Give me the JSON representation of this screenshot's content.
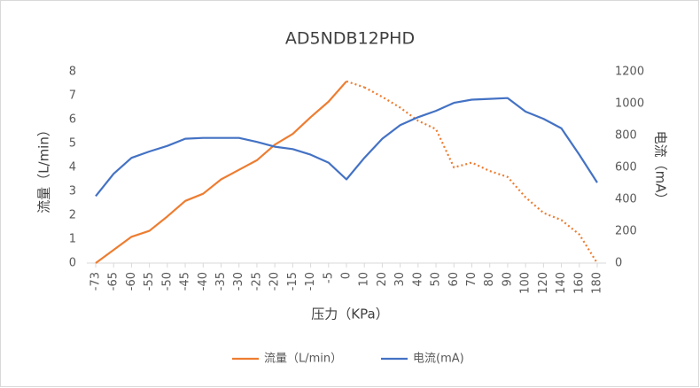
{
  "chart_data": {
    "type": "line",
    "title": "AD5NDB12PHD",
    "x_label": "压力（KPa）",
    "y_label": "流量（L/min）",
    "y2_label": "电流（mA）",
    "categories": [
      "-73",
      "-65",
      "-60",
      "-55",
      "-50",
      "-45",
      "-40",
      "-35",
      "-30",
      "-25",
      "-20",
      "-15",
      "-10",
      "-5",
      "0",
      "10",
      "20",
      "30",
      "40",
      "50",
      "60",
      "70",
      "80",
      "90",
      "100",
      "120",
      "140",
      "160",
      "180"
    ],
    "series": [
      {
        "name": "流量（L/min）",
        "color": "#ed7d31",
        "dotted_from_index": 15,
        "values": [
          0,
          0.55,
          1.1,
          1.35,
          1.95,
          2.6,
          2.9,
          3.5,
          3.9,
          4.3,
          4.95,
          5.4,
          6.1,
          6.75,
          7.6,
          7.35,
          6.95,
          6.5,
          5.95,
          5.6,
          4.0,
          4.2,
          3.85,
          3.6,
          2.75,
          2.1,
          1.8,
          1.2,
          0
        ]
      },
      {
        "name": "电流(mA)",
        "color": "#4472c4",
        "axis": "y2",
        "values": [
          420,
          560,
          660,
          700,
          735,
          780,
          785,
          785,
          785,
          760,
          730,
          715,
          680,
          630,
          525,
          660,
          780,
          865,
          915,
          955,
          1005,
          1025,
          1030,
          1035,
          950,
          905,
          845,
          680,
          505
        ]
      }
    ],
    "ylim": [
      0,
      8
    ],
    "yticks": [
      0,
      1,
      2,
      3,
      4,
      5,
      6,
      7,
      8
    ],
    "y2lim": [
      0,
      1200
    ],
    "y2ticks": [
      0,
      200,
      400,
      600,
      800,
      1000,
      1200
    ],
    "grid": false,
    "legend": "bottom"
  }
}
